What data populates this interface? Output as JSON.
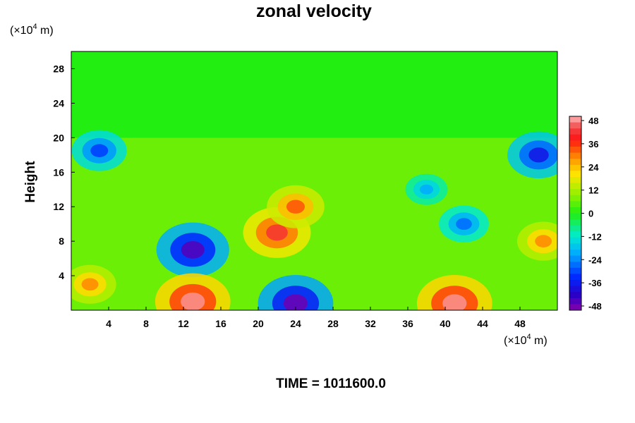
{
  "chart_data": {
    "type": "heatmap",
    "title": "zonal velocity",
    "ylabel": "Height",
    "x_unit_label": "(×10",
    "x_unit_exp": "4",
    "x_unit_tail": " m)",
    "y_unit_label": "(×10",
    "y_unit_exp": "4",
    "y_unit_tail": " m)",
    "xlim": [
      0,
      52
    ],
    "ylim": [
      0,
      30
    ],
    "x_ticks": [
      4,
      8,
      12,
      16,
      20,
      24,
      28,
      32,
      36,
      40,
      44,
      48
    ],
    "y_ticks": [
      4,
      8,
      12,
      16,
      20,
      24,
      28
    ],
    "colorbar": {
      "min": -48,
      "max": 48,
      "tick_labels": [
        48,
        36,
        24,
        12,
        0,
        -12,
        -24,
        -36,
        -48
      ]
    },
    "field_features": [
      {
        "x": 22,
        "y": 9,
        "value": 40
      },
      {
        "x": 24,
        "y": 12,
        "value": 32
      },
      {
        "x": 13,
        "y": 7,
        "value": -44
      },
      {
        "x": 3,
        "y": 18.5,
        "value": -30
      },
      {
        "x": 50,
        "y": 18,
        "value": -36
      },
      {
        "x": 42,
        "y": 10,
        "value": -26
      },
      {
        "x": 38,
        "y": 14,
        "value": -20
      },
      {
        "x": 50.5,
        "y": 8,
        "value": 28
      },
      {
        "x": 13,
        "y": 1,
        "value": 46
      },
      {
        "x": 41,
        "y": 0.8,
        "value": 46
      },
      {
        "x": 24,
        "y": 0.8,
        "value": -46
      },
      {
        "x": 2,
        "y": 3,
        "value": 28
      }
    ],
    "upper_region_value": 0,
    "upper_region_start_y": 20
  },
  "footer": "TIME = 1011600.0"
}
